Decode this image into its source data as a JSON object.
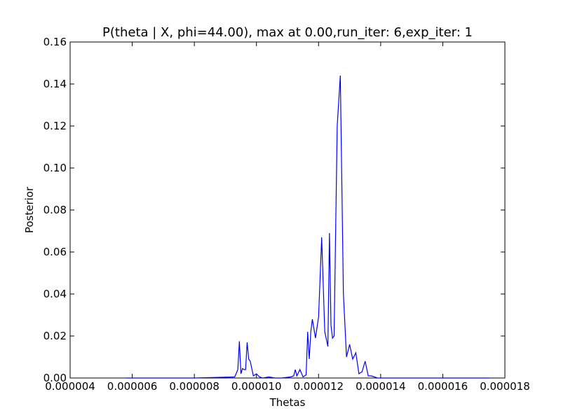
{
  "chart_data": {
    "type": "line",
    "title": "P(theta | X, phi=44.00), max at 0.00,run_iter: 6,exp_iter: 1",
    "xlabel": "Thetas",
    "ylabel": "Posterior",
    "xlim": [
      4e-06,
      1.8e-05
    ],
    "ylim": [
      0.0,
      0.16
    ],
    "xticks": [
      4e-06,
      6e-06,
      8e-06,
      1e-05,
      1.2e-05,
      1.4e-05,
      1.6e-05,
      1.8e-05
    ],
    "xtick_labels": [
      "0.000004",
      "0.000006",
      "0.000008",
      "0.000010",
      "0.000012",
      "0.000014",
      "0.000016",
      "0.000018"
    ],
    "yticks": [
      0.0,
      0.02,
      0.04,
      0.06,
      0.08,
      0.1,
      0.12,
      0.14,
      0.16
    ],
    "ytick_labels": [
      "0.00",
      "0.02",
      "0.04",
      "0.06",
      "0.08",
      "0.10",
      "0.12",
      "0.14",
      "0.16"
    ],
    "grid": false,
    "legend": "none",
    "series": [
      {
        "color": "#0000ff",
        "x": [
          5.8e-06,
          8e-06,
          9.3e-06,
          9.4e-06,
          9.45e-06,
          9.5e-06,
          9.55e-06,
          9.6e-06,
          9.65e-06,
          9.7e-06,
          9.75e-06,
          9.8e-06,
          9.9e-06,
          1e-05,
          1.01e-05,
          1.02e-05,
          1.04e-05,
          1.06e-05,
          1.08e-05,
          1.11e-05,
          1.12e-05,
          1.125e-05,
          1.13e-05,
          1.14e-05,
          1.15e-05,
          1.16e-05,
          1.165e-05,
          1.17e-05,
          1.175e-05,
          1.18e-05,
          1.19e-05,
          1.2e-05,
          1.21e-05,
          1.22e-05,
          1.23e-05,
          1.235e-05,
          1.24e-05,
          1.245e-05,
          1.25e-05,
          1.26e-05,
          1.27e-05,
          1.28e-05,
          1.29e-05,
          1.3e-05,
          1.31e-05,
          1.32e-05,
          1.33e-05,
          1.34e-05,
          1.35e-05,
          1.36e-05,
          1.37e-05,
          1.39e-05,
          1.45e-05,
          1.75e-05
        ],
        "y": [
          0.0,
          0.0,
          0.0005,
          0.004,
          0.0175,
          0.002,
          0.0045,
          0.004,
          0.004,
          0.017,
          0.009,
          0.008,
          0.001,
          0.002,
          0.0005,
          0.0,
          0.0005,
          0.0,
          0.0,
          0.0005,
          0.001,
          0.004,
          0.001,
          0.004,
          0.0005,
          0.0015,
          0.022,
          0.009,
          0.022,
          0.028,
          0.019,
          0.029,
          0.067,
          0.022,
          0.015,
          0.069,
          0.025,
          0.019,
          0.02,
          0.12,
          0.144,
          0.04,
          0.01,
          0.016,
          0.009,
          0.012,
          0.002,
          0.003,
          0.008,
          0.001,
          0.001,
          0.0,
          0.0,
          0.0
        ]
      }
    ]
  }
}
